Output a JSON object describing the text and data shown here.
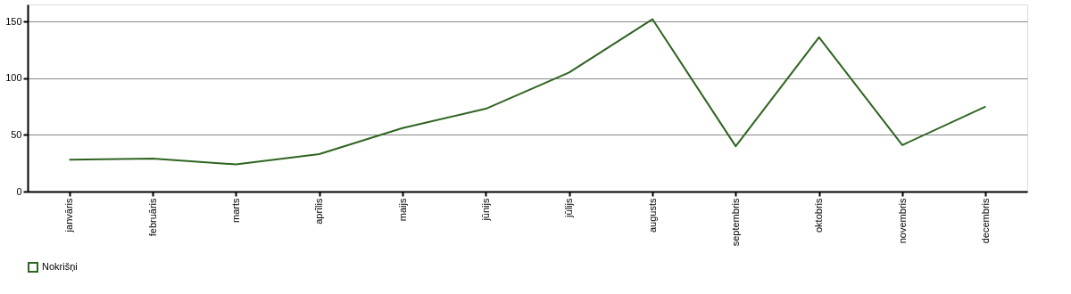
{
  "chart_data": {
    "type": "line",
    "categories": [
      "janvāris",
      "februāris",
      "marts",
      "aprīlis",
      "maijs",
      "jūnijs",
      "jūlijs",
      "augusts",
      "septembris",
      "oktobris",
      "novembris",
      "decembris"
    ],
    "series": [
      {
        "name": "Nokrišņi",
        "color": "#2e6420",
        "values": [
          28,
          29,
          24,
          33,
          56,
          73,
          105,
          152,
          40,
          136,
          41,
          75
        ]
      }
    ],
    "ylim": [
      0,
      165
    ],
    "yticks": [
      0,
      50,
      100,
      150
    ],
    "grid": "y",
    "legend": "bottom left",
    "marker": "none",
    "line_style": "solid"
  }
}
